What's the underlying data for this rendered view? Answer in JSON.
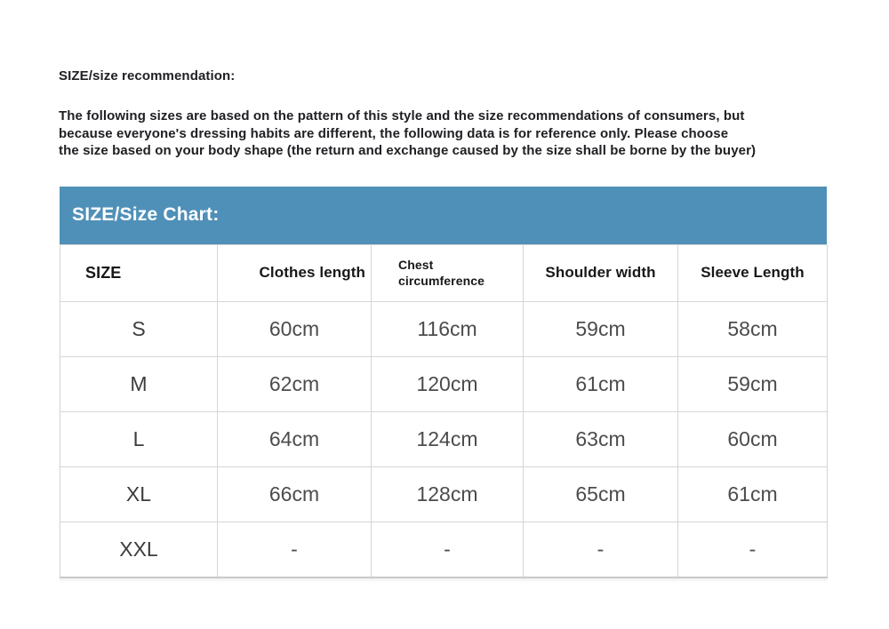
{
  "page": {
    "heading": "SIZE/size recommendation:",
    "intro_lines": [
      "The following sizes are based on the pattern of this style and the size recommendations of consumers, but",
      "because everyone's dressing habits are different, the following data is for reference only. Please choose",
      "the size based on your body shape (the return and exchange caused by the size shall be borne by the buyer)"
    ]
  },
  "size_chart": {
    "title": "SIZE/Size Chart:",
    "accent_color": "#4f90b8",
    "header_text_color": "#ffffff",
    "border_color": "#d6d6d6",
    "columns": {
      "size": "SIZE",
      "clothes_length": "Clothes length",
      "chest_line1": "Chest",
      "chest_line2": "circumference",
      "shoulder_width": "Shoulder width",
      "sleeve_length": "Sleeve Length"
    },
    "rows": [
      {
        "size": "S",
        "clothes_length": "60cm",
        "chest": "116cm",
        "shoulder": "59cm",
        "sleeve": "58cm"
      },
      {
        "size": "M",
        "clothes_length": "62cm",
        "chest": "120cm",
        "shoulder": "61cm",
        "sleeve": "59cm"
      },
      {
        "size": "L",
        "clothes_length": "64cm",
        "chest": "124cm",
        "shoulder": "63cm",
        "sleeve": "60cm"
      },
      {
        "size": "XL",
        "clothes_length": "66cm",
        "chest": "128cm",
        "shoulder": "65cm",
        "sleeve": "61cm"
      },
      {
        "size": "XXL",
        "clothes_length": "-",
        "chest": "-",
        "shoulder": "-",
        "sleeve": "-"
      }
    ]
  }
}
